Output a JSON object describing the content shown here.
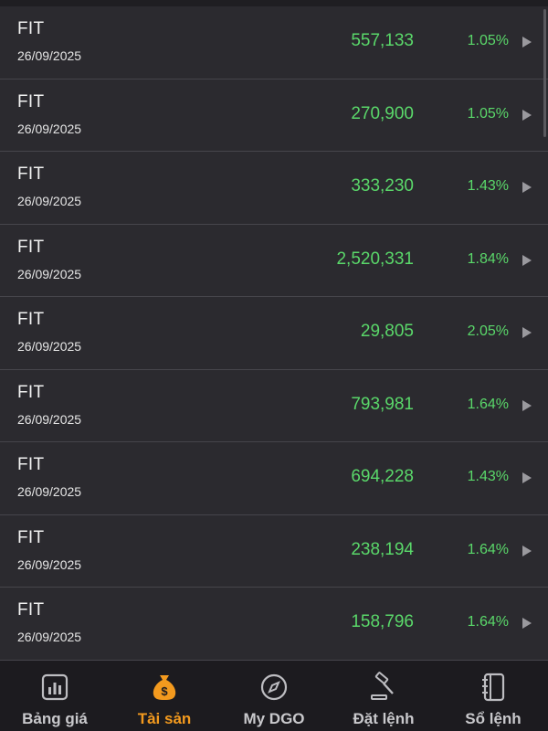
{
  "rows": [
    {
      "symbol": "FIT",
      "date": "26/09/2025",
      "amount": "557,133",
      "percent": "1.05%"
    },
    {
      "symbol": "FIT",
      "date": "26/09/2025",
      "amount": "270,900",
      "percent": "1.05%"
    },
    {
      "symbol": "FIT",
      "date": "26/09/2025",
      "amount": "333,230",
      "percent": "1.43%"
    },
    {
      "symbol": "FIT",
      "date": "26/09/2025",
      "amount": "2,520,331",
      "percent": "1.84%"
    },
    {
      "symbol": "FIT",
      "date": "26/09/2025",
      "amount": "29,805",
      "percent": "2.05%"
    },
    {
      "symbol": "FIT",
      "date": "26/09/2025",
      "amount": "793,981",
      "percent": "1.64%"
    },
    {
      "symbol": "FIT",
      "date": "26/09/2025",
      "amount": "694,228",
      "percent": "1.43%"
    },
    {
      "symbol": "FIT",
      "date": "26/09/2025",
      "amount": "238,194",
      "percent": "1.64%"
    },
    {
      "symbol": "FIT",
      "date": "26/09/2025",
      "amount": "158,796",
      "percent": "1.64%"
    }
  ],
  "tabs": [
    {
      "label": "Bảng giá",
      "icon": "chart-bars-icon",
      "active": false
    },
    {
      "label": "Tài sản",
      "icon": "money-bag-icon",
      "active": true
    },
    {
      "label": "My DGO",
      "icon": "compass-icon",
      "active": false
    },
    {
      "label": "Đặt lệnh",
      "icon": "gavel-icon",
      "active": false
    },
    {
      "label": "Sổ lệnh",
      "icon": "notebook-icon",
      "active": false
    }
  ],
  "colors": {
    "positive": "#5ad86a",
    "active_tab": "#f39a1e",
    "inactive_tab": "#c9c9cc",
    "background": "#2b2a2f"
  }
}
